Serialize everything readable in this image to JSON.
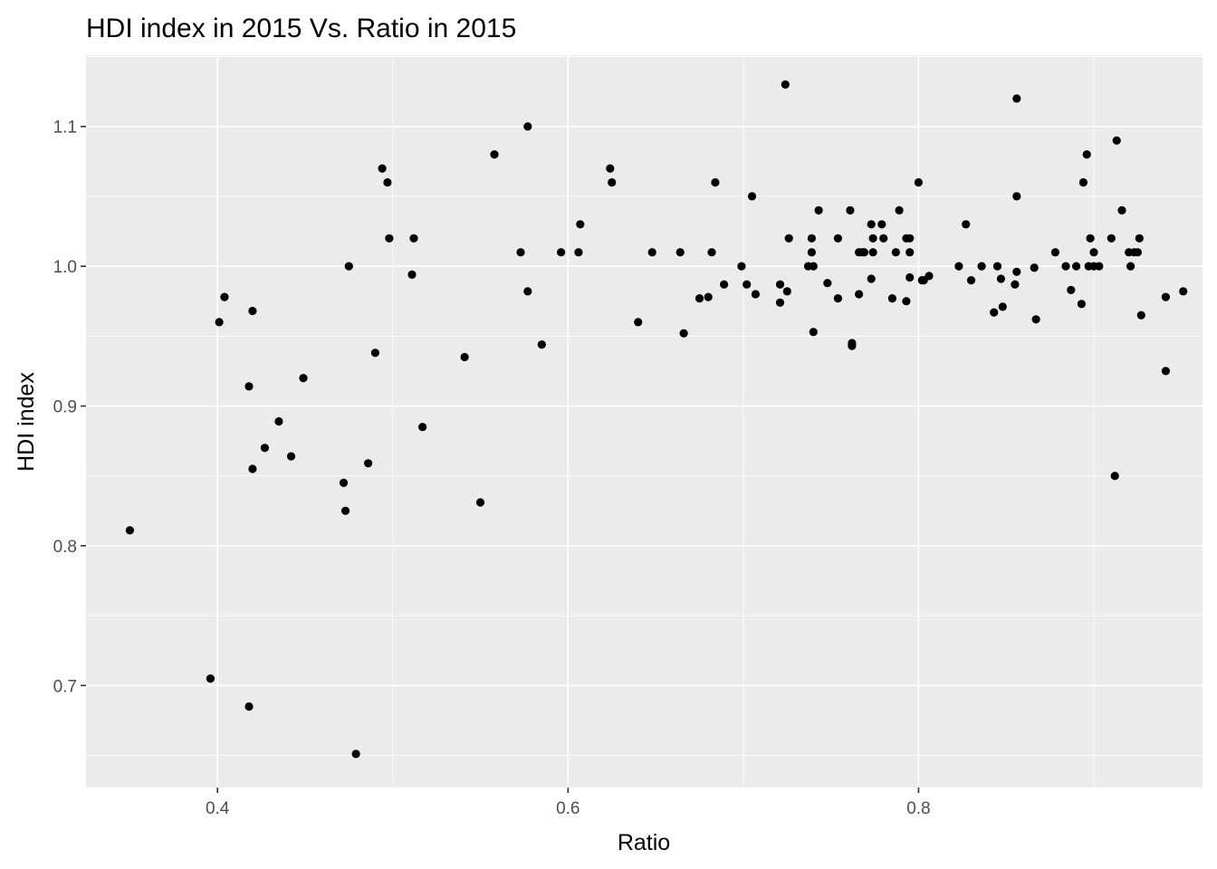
{
  "chart_data": {
    "type": "scatter",
    "title": "HDI index in 2015 Vs. Ratio in 2015",
    "xlabel": "Ratio",
    "ylabel": "HDI index",
    "xlim": [
      0.325,
      0.962
    ],
    "ylim": [
      0.627,
      1.151
    ],
    "x_ticks": [
      0.4,
      0.6,
      0.8
    ],
    "x_tick_labels": [
      "0.4",
      "0.6",
      "0.8"
    ],
    "y_ticks": [
      0.7,
      0.8,
      0.9,
      1.0,
      1.1
    ],
    "y_tick_labels": [
      "0.7",
      "0.8",
      "0.9",
      "1.0",
      "1.1"
    ],
    "grid": true,
    "legend": "none",
    "colors": {
      "panel": "#EBEBEB",
      "grid": "#FFFFFF",
      "point": "#000000"
    },
    "points": [
      [
        0.35,
        0.811
      ],
      [
        0.396,
        0.705
      ],
      [
        0.401,
        0.96
      ],
      [
        0.404,
        0.978
      ],
      [
        0.418,
        0.914
      ],
      [
        0.418,
        0.685
      ],
      [
        0.42,
        0.968
      ],
      [
        0.42,
        0.855
      ],
      [
        0.427,
        0.87
      ],
      [
        0.435,
        0.889
      ],
      [
        0.442,
        0.864
      ],
      [
        0.449,
        0.92
      ],
      [
        0.472,
        0.845
      ],
      [
        0.473,
        0.825
      ],
      [
        0.475,
        1.0
      ],
      [
        0.479,
        0.651
      ],
      [
        0.486,
        0.859
      ],
      [
        0.49,
        0.938
      ],
      [
        0.494,
        1.07
      ],
      [
        0.497,
        1.06
      ],
      [
        0.498,
        1.02
      ],
      [
        0.511,
        0.994
      ],
      [
        0.512,
        1.02
      ],
      [
        0.517,
        0.885
      ],
      [
        0.541,
        0.935
      ],
      [
        0.55,
        0.831
      ],
      [
        0.558,
        1.08
      ],
      [
        0.573,
        1.01
      ],
      [
        0.577,
        1.1
      ],
      [
        0.577,
        0.982
      ],
      [
        0.585,
        0.944
      ],
      [
        0.596,
        1.01
      ],
      [
        0.606,
        1.01
      ],
      [
        0.607,
        1.03
      ],
      [
        0.624,
        1.07
      ],
      [
        0.625,
        1.06
      ],
      [
        0.64,
        0.96
      ],
      [
        0.648,
        1.01
      ],
      [
        0.664,
        1.01
      ],
      [
        0.666,
        0.952
      ],
      [
        0.675,
        0.977
      ],
      [
        0.68,
        0.978
      ],
      [
        0.682,
        1.01
      ],
      [
        0.684,
        1.06
      ],
      [
        0.689,
        0.987
      ],
      [
        0.699,
        1.0
      ],
      [
        0.702,
        0.987
      ],
      [
        0.705,
        1.05
      ],
      [
        0.707,
        0.98
      ],
      [
        0.721,
        0.987
      ],
      [
        0.721,
        0.974
      ],
      [
        0.724,
        1.13
      ],
      [
        0.725,
        0.982
      ],
      [
        0.726,
        1.02
      ],
      [
        0.737,
        1.0
      ],
      [
        0.739,
        1.01
      ],
      [
        0.739,
        1.02
      ],
      [
        0.74,
        1.0
      ],
      [
        0.74,
        0.953
      ],
      [
        0.743,
        1.04
      ],
      [
        0.748,
        0.988
      ],
      [
        0.754,
        0.977
      ],
      [
        0.754,
        1.02
      ],
      [
        0.761,
        1.04
      ],
      [
        0.762,
        0.945
      ],
      [
        0.762,
        0.943
      ],
      [
        0.766,
        1.01
      ],
      [
        0.766,
        0.98
      ],
      [
        0.768,
        1.01
      ],
      [
        0.769,
        1.01
      ],
      [
        0.773,
        1.03
      ],
      [
        0.773,
        0.991
      ],
      [
        0.774,
        1.02
      ],
      [
        0.774,
        1.01
      ],
      [
        0.779,
        1.03
      ],
      [
        0.78,
        1.02
      ],
      [
        0.785,
        0.977
      ],
      [
        0.787,
        1.01
      ],
      [
        0.789,
        1.04
      ],
      [
        0.793,
        1.02
      ],
      [
        0.793,
        0.975
      ],
      [
        0.795,
        1.02
      ],
      [
        0.795,
        1.01
      ],
      [
        0.795,
        0.992
      ],
      [
        0.8,
        1.06
      ],
      [
        0.802,
        0.99
      ],
      [
        0.803,
        0.99
      ],
      [
        0.806,
        0.993
      ],
      [
        0.823,
        1.0
      ],
      [
        0.827,
        1.03
      ],
      [
        0.83,
        0.99
      ],
      [
        0.836,
        1.0
      ],
      [
        0.843,
        0.967
      ],
      [
        0.845,
        1.0
      ],
      [
        0.847,
        0.991
      ],
      [
        0.848,
        0.971
      ],
      [
        0.855,
        0.987
      ],
      [
        0.856,
        1.12
      ],
      [
        0.856,
        1.05
      ],
      [
        0.856,
        0.996
      ],
      [
        0.866,
        0.999
      ],
      [
        0.867,
        0.962
      ],
      [
        0.878,
        1.01
      ],
      [
        0.884,
        1.0
      ],
      [
        0.887,
        0.983
      ],
      [
        0.89,
        1.0
      ],
      [
        0.893,
        0.973
      ],
      [
        0.894,
        1.06
      ],
      [
        0.896,
        1.08
      ],
      [
        0.897,
        1.0
      ],
      [
        0.898,
        1.02
      ],
      [
        0.9,
        1.01
      ],
      [
        0.9,
        1.0
      ],
      [
        0.903,
        1.0
      ],
      [
        0.91,
        1.02
      ],
      [
        0.912,
        0.85
      ],
      [
        0.913,
        1.09
      ],
      [
        0.916,
        1.04
      ],
      [
        0.92,
        1.01
      ],
      [
        0.921,
        1.0
      ],
      [
        0.923,
        1.01
      ],
      [
        0.925,
        1.01
      ],
      [
        0.926,
        1.02
      ],
      [
        0.927,
        0.965
      ],
      [
        0.941,
        0.978
      ],
      [
        0.941,
        0.925
      ],
      [
        0.951,
        0.982
      ]
    ]
  }
}
